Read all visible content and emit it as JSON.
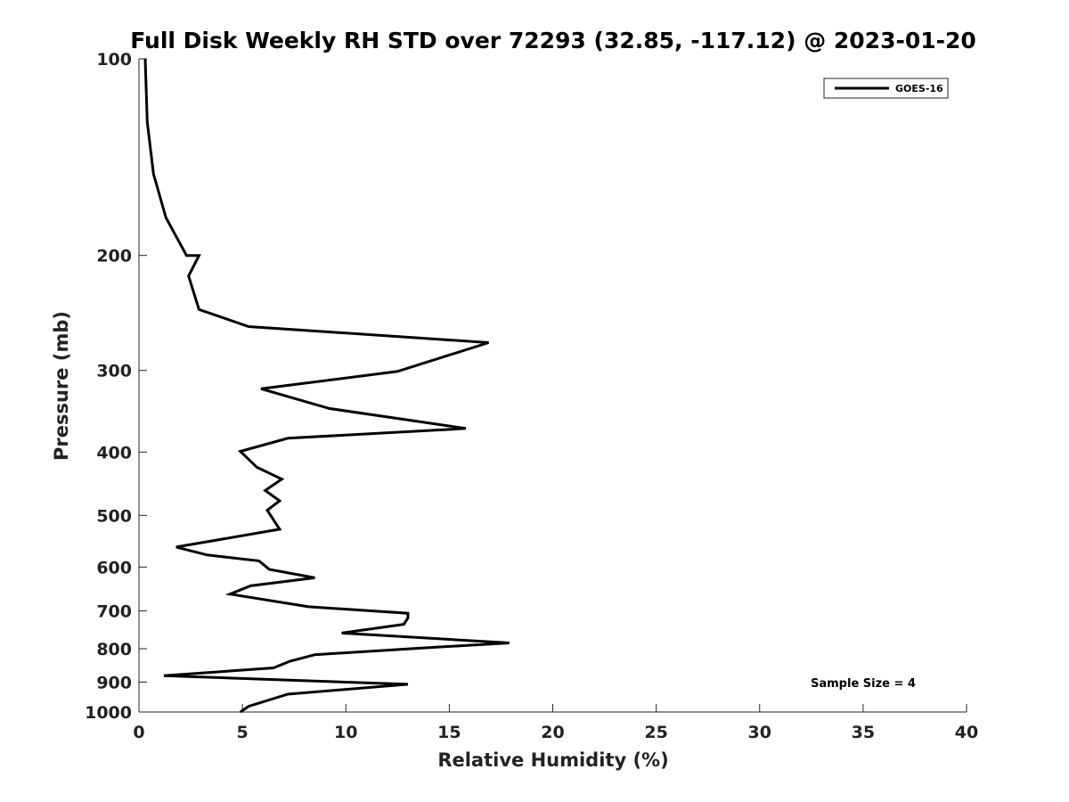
{
  "chart_data": {
    "type": "line",
    "title": "Full Disk Weekly RH STD over 72293 (32.85, -117.12) @ 2023-01-20",
    "xlabel": "Relative Humidity (%)",
    "ylabel": "Pressure (mb)",
    "xlim": [
      0,
      40
    ],
    "ylim": [
      100,
      1000
    ],
    "y_scale": "log",
    "y_reversed": true,
    "x_ticks": [
      0,
      5,
      10,
      15,
      20,
      25,
      30,
      35,
      40
    ],
    "x_tick_labels": [
      "0",
      "5",
      "10",
      "15",
      "20",
      "25",
      "30",
      "35",
      "40"
    ],
    "y_ticks": [
      100,
      200,
      300,
      400,
      500,
      600,
      700,
      800,
      900,
      1000
    ],
    "y_tick_labels": [
      "100",
      "200",
      "300",
      "400",
      "500",
      "600",
      "700",
      "800",
      "900",
      "1000"
    ],
    "grid": false,
    "legend_position": "top-right",
    "series": [
      {
        "name": "GOES-16",
        "color": "#000000",
        "points": [
          [
            0.3,
            100
          ],
          [
            0.4,
            125
          ],
          [
            0.7,
            150
          ],
          [
            1.3,
            175
          ],
          [
            2.3,
            200
          ],
          [
            2.9,
            200
          ],
          [
            2.4,
            215
          ],
          [
            2.9,
            242
          ],
          [
            5.3,
            257
          ],
          [
            16.9,
            272
          ],
          [
            12.5,
            301
          ],
          [
            5.9,
            320
          ],
          [
            9.2,
            343
          ],
          [
            15.8,
            368
          ],
          [
            7.2,
            381
          ],
          [
            4.9,
            399
          ],
          [
            5.7,
            422
          ],
          [
            6.9,
            440
          ],
          [
            6.1,
            458
          ],
          [
            6.8,
            475
          ],
          [
            6.2,
            491
          ],
          [
            6.8,
            525
          ],
          [
            1.8,
            559
          ],
          [
            3.3,
            575
          ],
          [
            5.8,
            587
          ],
          [
            6.3,
            605
          ],
          [
            8.5,
            623
          ],
          [
            5.4,
            641
          ],
          [
            4.4,
            660
          ],
          [
            8.2,
            690
          ],
          [
            13.0,
            706
          ],
          [
            13.0,
            718
          ],
          [
            12.8,
            734
          ],
          [
            9.8,
            757
          ],
          [
            17.9,
            784
          ],
          [
            14.0,
            797
          ],
          [
            8.5,
            817
          ],
          [
            7.3,
            836
          ],
          [
            6.5,
            856
          ],
          [
            1.2,
            880
          ],
          [
            13.0,
            907
          ],
          [
            7.2,
            939
          ],
          [
            5.3,
            980
          ],
          [
            4.9,
            1000
          ]
        ]
      }
    ],
    "annotations": [
      "Sample Size = 4"
    ]
  }
}
